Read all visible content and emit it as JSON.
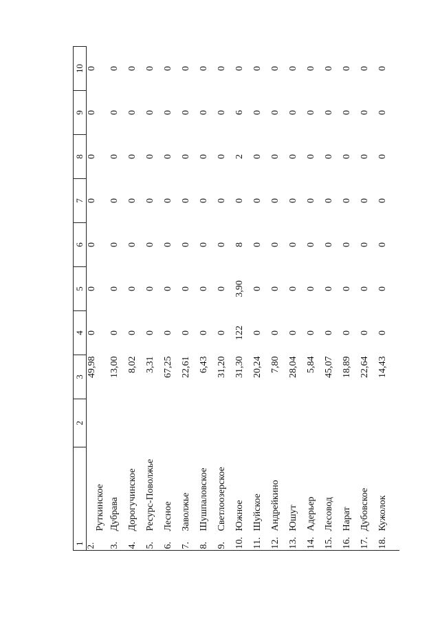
{
  "page_number": "2",
  "header": [
    "1",
    "2",
    "3",
    "4",
    "5",
    "6",
    "7",
    "8",
    "9",
    "10"
  ],
  "first_row_label": "2.",
  "rows": [
    {
      "no": "",
      "name": "Руткинское",
      "c3": "49,98",
      "c4": "0",
      "c5": "0",
      "c6": "0",
      "c7": "0",
      "c8": "0",
      "c9": "0",
      "c10": "0"
    },
    {
      "no": "3.",
      "name": "Дубрава",
      "c3": "13,00",
      "c4": "0",
      "c5": "0",
      "c6": "0",
      "c7": "0",
      "c8": "0",
      "c9": "0",
      "c10": "0"
    },
    {
      "no": "4.",
      "name": "Дорогучинское",
      "c3": "8,02",
      "c4": "0",
      "c5": "0",
      "c6": "0",
      "c7": "0",
      "c8": "0",
      "c9": "0",
      "c10": "0"
    },
    {
      "no": "5.",
      "name": "Ресурс-Поволжье",
      "c3": "3,31",
      "c4": "0",
      "c5": "0",
      "c6": "0",
      "c7": "0",
      "c8": "0",
      "c9": "0",
      "c10": "0"
    },
    {
      "no": "6.",
      "name": "Лесное",
      "c3": "67,25",
      "c4": "0",
      "c5": "0",
      "c6": "0",
      "c7": "0",
      "c8": "0",
      "c9": "0",
      "c10": "0"
    },
    {
      "no": "7.",
      "name": "Заволжье",
      "c3": "22,61",
      "c4": "0",
      "c5": "0",
      "c6": "0",
      "c7": "0",
      "c8": "0",
      "c9": "0",
      "c10": "0"
    },
    {
      "no": "8.",
      "name": "Шушпаловское",
      "c3": "6,43",
      "c4": "0",
      "c5": "0",
      "c6": "0",
      "c7": "0",
      "c8": "0",
      "c9": "0",
      "c10": "0"
    },
    {
      "no": "9.",
      "name": "Светлоозерское",
      "c3": "31,20",
      "c4": "0",
      "c5": "0",
      "c6": "0",
      "c7": "0",
      "c8": "0",
      "c9": "0",
      "c10": "0"
    },
    {
      "no": "10.",
      "name": "Южное",
      "c3": "31,30",
      "c4": "122",
      "c5": "3,90",
      "c6": "8",
      "c7": "0",
      "c8": "2",
      "c9": "6",
      "c10": "0"
    },
    {
      "no": "11.",
      "name": "Шуйское",
      "c3": "20,24",
      "c4": "0",
      "c5": "0",
      "c6": "0",
      "c7": "0",
      "c8": "0",
      "c9": "0",
      "c10": "0"
    },
    {
      "no": "12.",
      "name": "Андрейкино",
      "c3": "7,80",
      "c4": "0",
      "c5": "0",
      "c6": "0",
      "c7": "0",
      "c8": "0",
      "c9": "0",
      "c10": "0"
    },
    {
      "no": "13.",
      "name": "Юшут",
      "c3": "28,04",
      "c4": "0",
      "c5": "0",
      "c6": "0",
      "c7": "0",
      "c8": "0",
      "c9": "0",
      "c10": "0"
    },
    {
      "no": "14.",
      "name": "Адерьер",
      "c3": "5,84",
      "c4": "0",
      "c5": "0",
      "c6": "0",
      "c7": "0",
      "c8": "0",
      "c9": "0",
      "c10": "0"
    },
    {
      "no": "15.",
      "name": "Лесовод",
      "c3": "45,07",
      "c4": "0",
      "c5": "0",
      "c6": "0",
      "c7": "0",
      "c8": "0",
      "c9": "0",
      "c10": "0"
    },
    {
      "no": "16.",
      "name": "Нарат",
      "c3": "18,89",
      "c4": "0",
      "c5": "0",
      "c6": "0",
      "c7": "0",
      "c8": "0",
      "c9": "0",
      "c10": "0"
    },
    {
      "no": "17.",
      "name": "Дубовское",
      "c3": "22,64",
      "c4": "0",
      "c5": "0",
      "c6": "0",
      "c7": "0",
      "c8": "0",
      "c9": "0",
      "c10": "0"
    },
    {
      "no": "18.",
      "name": "Кужолок",
      "c3": "14,43",
      "c4": "0",
      "c5": "0",
      "c6": "0",
      "c7": "0",
      "c8": "0",
      "c9": "0",
      "c10": "0"
    }
  ]
}
